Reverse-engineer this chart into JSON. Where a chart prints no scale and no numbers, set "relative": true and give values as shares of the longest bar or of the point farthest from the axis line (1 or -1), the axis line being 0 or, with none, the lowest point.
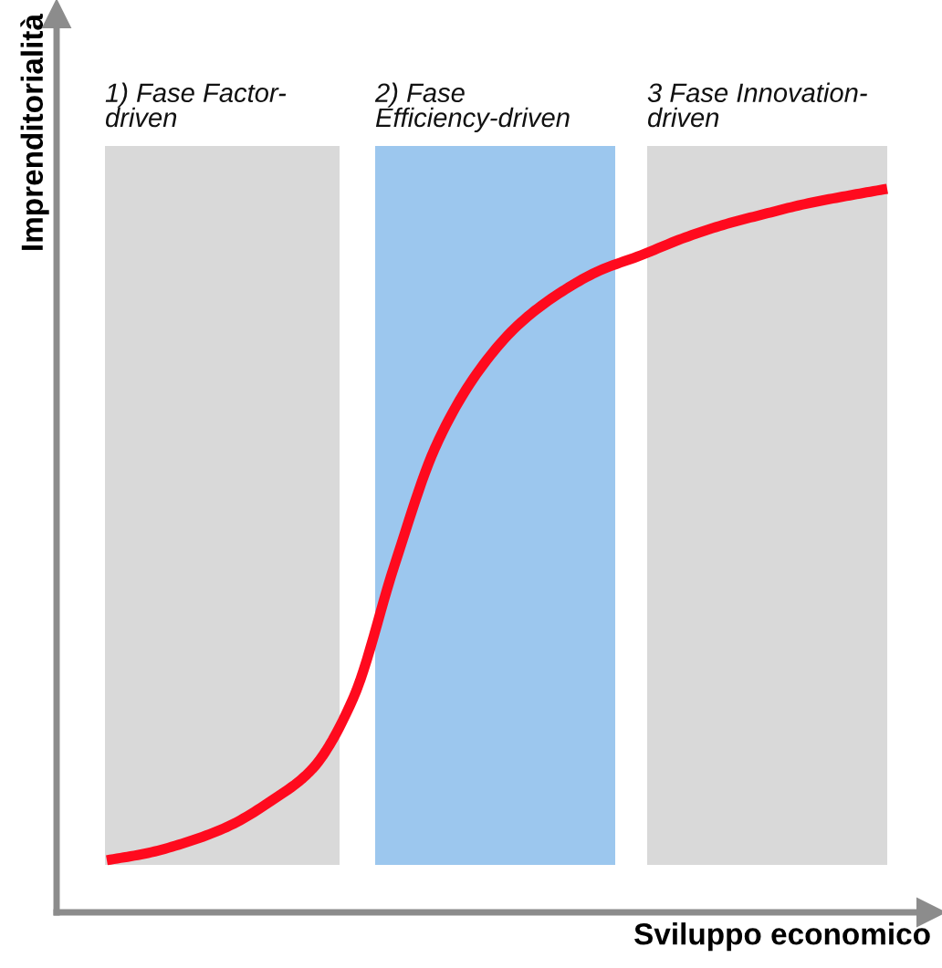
{
  "chart_data": {
    "type": "line",
    "relative": true,
    "xlabel": "Sviluppo economico",
    "ylabel": "Imprenditorialità",
    "marker": "none",
    "line_style": "solid",
    "categories": [
      null,
      null,
      null,
      null,
      null,
      null,
      null,
      null,
      null,
      null,
      null,
      null,
      null,
      null,
      null,
      null,
      null,
      null,
      null,
      null
    ],
    "series": [
      {
        "color": "#ff0a1e",
        "values": [
          0.072,
          0.082,
          0.098,
          0.12,
          0.154,
          0.198,
          0.296,
          0.479,
          0.643,
          0.744,
          0.811,
          0.855,
          0.887,
          0.908,
          0.931,
          0.95,
          0.965,
          0.979,
          0.99,
          1
        ]
      }
    ],
    "annotations": [
      "1) Fase Factor-\ndriven",
      "2) Fase\nEfficiency-driven",
      "3 Fase Innovation-\ndriven"
    ]
  }
}
